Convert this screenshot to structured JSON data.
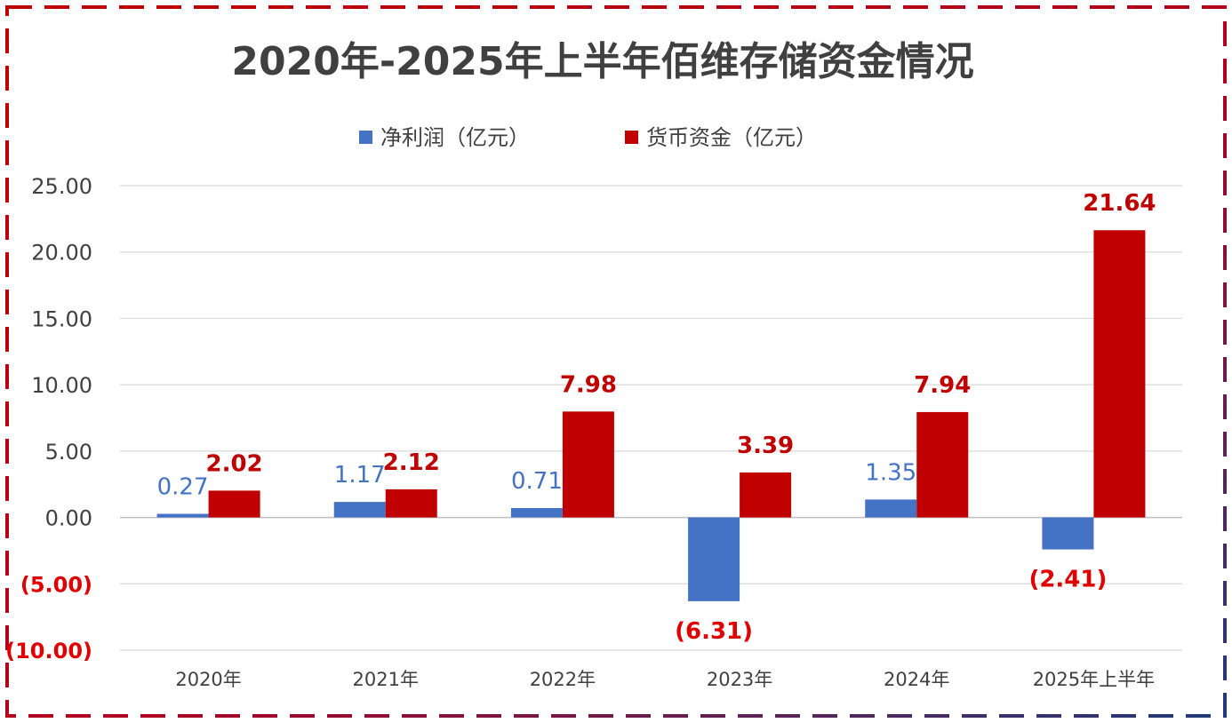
{
  "chart_data": {
    "type": "bar",
    "title": "2020年-2025年上半年佰维存储资金情况",
    "categories": [
      "2020年",
      "2021年",
      "2022年",
      "2023年",
      "2024年",
      "2025年上半年"
    ],
    "series": [
      {
        "name": "净利润（亿元）",
        "color": "#4472c4",
        "values": [
          0.27,
          1.17,
          0.71,
          -6.31,
          1.35,
          -2.41
        ],
        "labels": [
          "0.27",
          "1.17",
          "0.71",
          "(6.31)",
          "1.35",
          "(2.41)"
        ]
      },
      {
        "name": "货币资金（亿元）",
        "color": "#c00000",
        "values": [
          2.02,
          2.12,
          7.98,
          3.39,
          7.94,
          21.64
        ],
        "labels": [
          "2.02",
          "2.12",
          "7.98",
          "3.39",
          "7.94",
          "21.64"
        ]
      }
    ],
    "ylim": [
      -10,
      25
    ],
    "yticks": [
      25,
      20,
      15,
      10,
      5,
      0,
      -5,
      -10
    ],
    "ytick_labels": [
      "25.00",
      "20.00",
      "15.00",
      "10.00",
      "5.00",
      "0.00",
      "(5.00)",
      "(10.00)"
    ],
    "negative_label_color": "#e00000",
    "grid": true,
    "legend_position": "top-center"
  },
  "frame": {
    "left_color": "#c00000",
    "right_color": "#1f3b7a"
  }
}
